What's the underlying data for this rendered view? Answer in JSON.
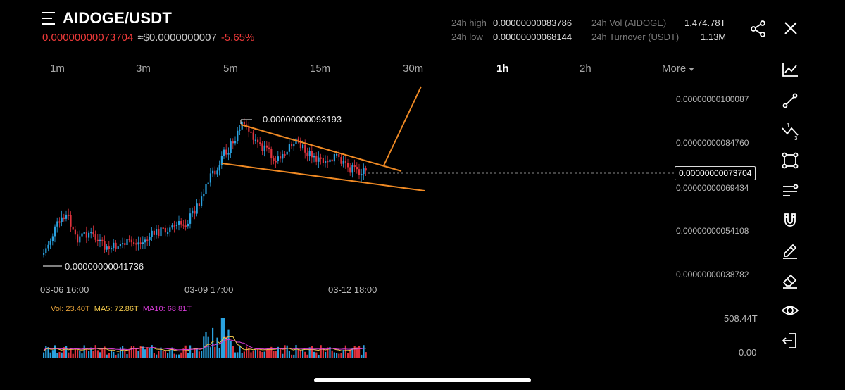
{
  "header": {
    "pair": "AIDOGE/USDT",
    "last_price": "0.00000000073704",
    "usd_value": "≈$0.0000000007",
    "change": "-5.65%",
    "stats": {
      "high_label": "24h high",
      "high_value": "0.00000000083786",
      "low_label": "24h low",
      "low_value": "0.00000000068144",
      "vol_label": "24h Vol (AIDOGE)",
      "vol_value": "1,474.78T",
      "turnover_label": "24h Turnover (USDT)",
      "turnover_value": "1.13M"
    }
  },
  "timeframes": [
    "1m",
    "3m",
    "5m",
    "15m",
    "30m",
    "1h",
    "2h",
    "More"
  ],
  "active_timeframe": "1h",
  "chart": {
    "y_ticks": [
      "0.00000000100087",
      "0.00000000084760",
      "0.00000000069434",
      "0.00000000054108",
      "0.00000000038782"
    ],
    "x_ticks": [
      "03-06 16:00",
      "03-09 17:00",
      "03-12 18:00"
    ],
    "current_price_tag": "0.00000000073704",
    "high_annotation": "0.00000000093193",
    "low_annotation": "0.00000000041736"
  },
  "volume": {
    "vol_label": "Vol: 23.40T",
    "ma5_label": "MA5: 72.86T",
    "ma10_label": "MA10: 68.81T",
    "max_label": "508.44T",
    "zero_label": "0.00",
    "colors": {
      "vol": "#e8a33a",
      "ma5": "#f2c94c",
      "ma10": "#d63bd6"
    }
  },
  "colors": {
    "up": "#2aa2e0",
    "down": "#e0323c",
    "trendline": "#f08a24"
  },
  "toolbar": [
    "indicator-icon",
    "trendline-icon",
    "fibonacci-icon",
    "rectangle-icon",
    "parallel-lines-icon",
    "magnet-icon",
    "pencil-icon",
    "eraser-icon",
    "eye-icon",
    "exit-icon"
  ]
}
